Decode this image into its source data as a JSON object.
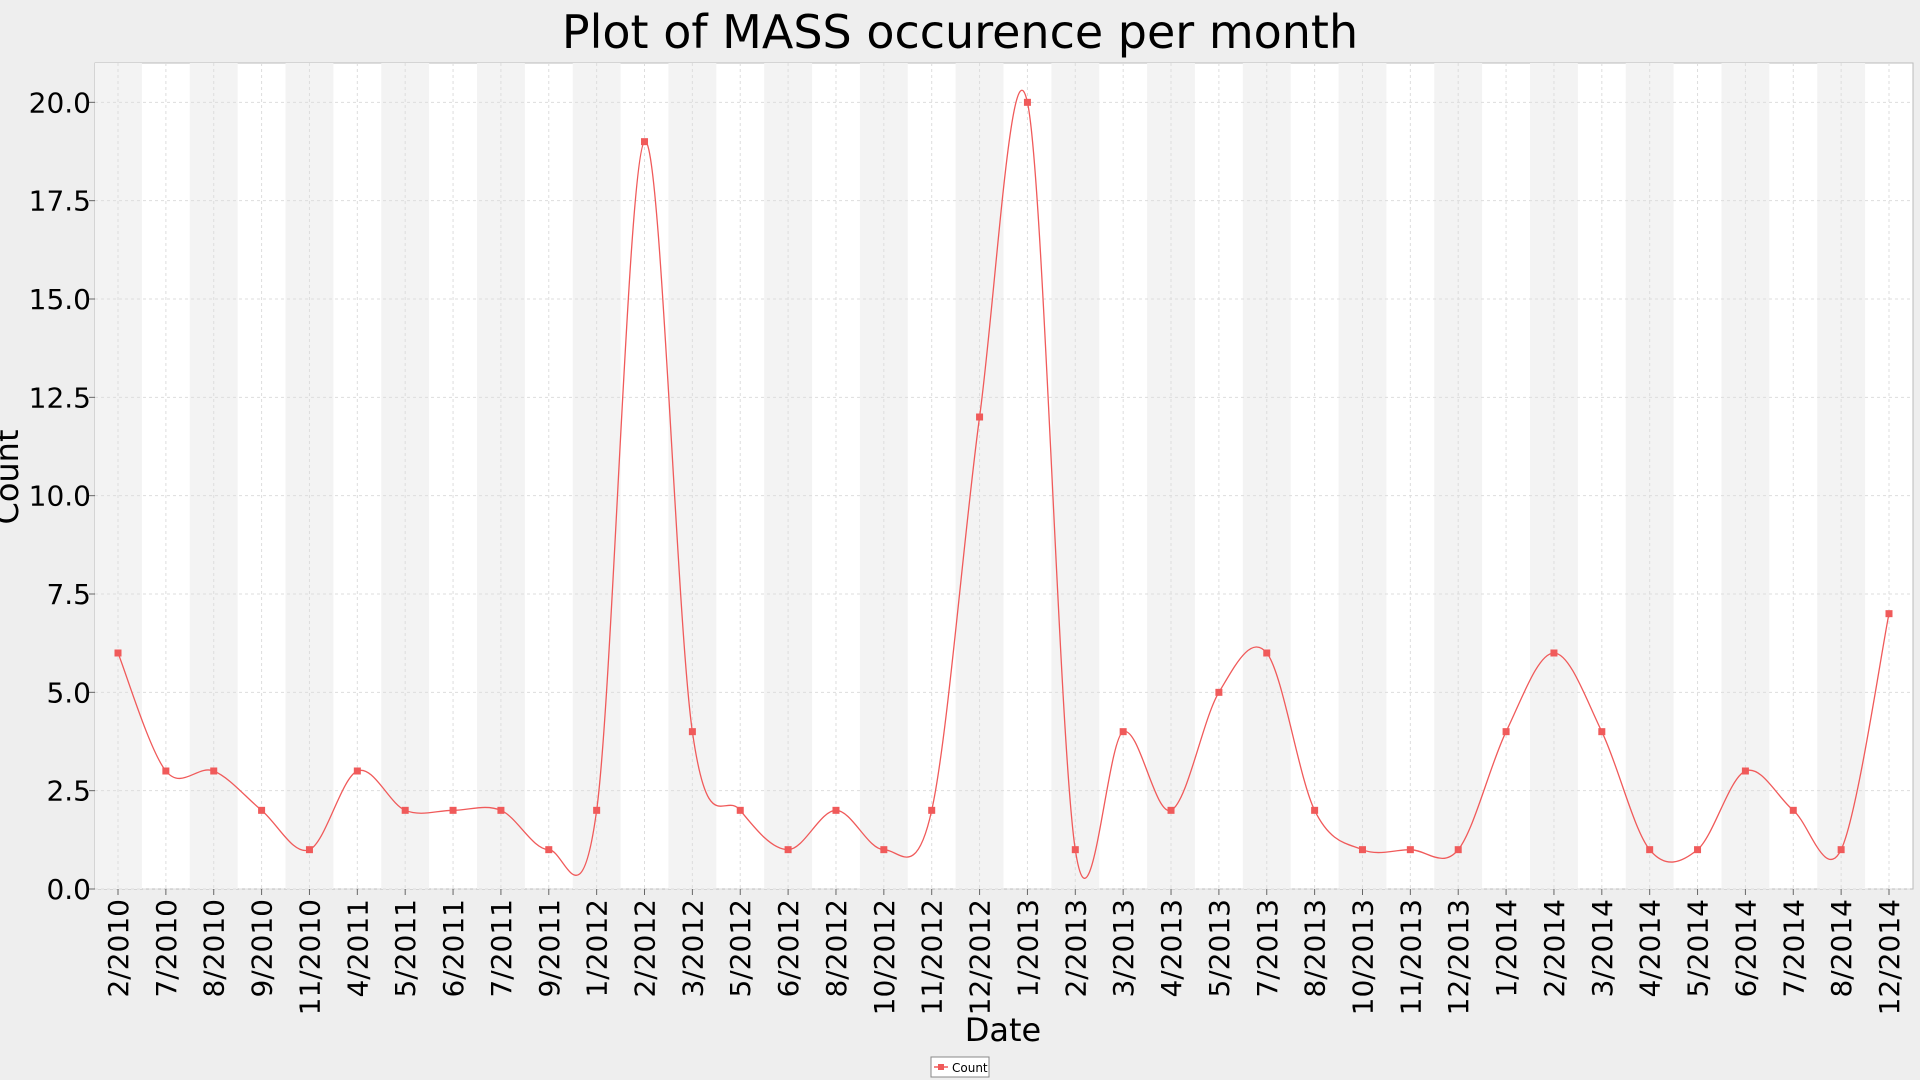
{
  "chart_data": {
    "type": "line",
    "title": "Plot of MASS occurence per month",
    "xlabel": "Date",
    "ylabel": "Count",
    "ylim": [
      0,
      21
    ],
    "y_ticks": [
      "0.0",
      "2.5",
      "5.0",
      "7.5",
      "10.0",
      "12.5",
      "15.0",
      "17.5",
      "20.0"
    ],
    "categories": [
      "2/2010",
      "7/2010",
      "8/2010",
      "9/2010",
      "11/2010",
      "4/2011",
      "5/2011",
      "6/2011",
      "7/2011",
      "9/2011",
      "1/2012",
      "2/2012",
      "3/2012",
      "5/2012",
      "6/2012",
      "8/2012",
      "10/2012",
      "11/2012",
      "12/2012",
      "1/2013",
      "2/2013",
      "3/2013",
      "4/2013",
      "5/2013",
      "7/2013",
      "8/2013",
      "10/2013",
      "11/2013",
      "12/2013",
      "1/2014",
      "2/2014",
      "3/2014",
      "4/2014",
      "5/2014",
      "6/2014",
      "7/2014",
      "8/2014",
      "12/2014"
    ],
    "series": [
      {
        "name": "Count",
        "color": "#f05a5a",
        "values": [
          6,
          3,
          3,
          2,
          1,
          3,
          2,
          2,
          2,
          1,
          2,
          19,
          4,
          2,
          1,
          2,
          1,
          2,
          12,
          20,
          1,
          4,
          2,
          5,
          6,
          2,
          1,
          1,
          1,
          4,
          6,
          4,
          1,
          1,
          3,
          2,
          1,
          7
        ]
      }
    ],
    "grid": true,
    "legend": "bottom-center",
    "colors": {
      "background": "#eeeeee",
      "band": "#f3f3f3",
      "plot": "#ffffff",
      "line": "#f05a5a"
    }
  }
}
